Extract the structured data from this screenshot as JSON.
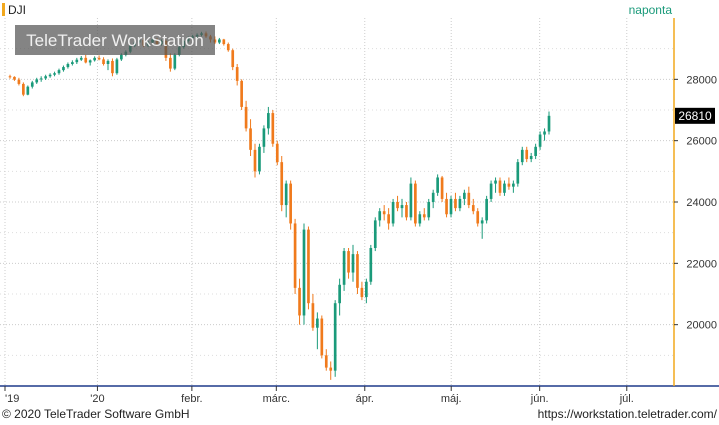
{
  "symbol": "DJI",
  "interval": "naponta",
  "watermark": "TeleTrader WorkStation",
  "footer": {
    "left": "© 2020 TeleTrader Software GmbH",
    "right": "https://workstation.teletrader.com/"
  },
  "colors": {
    "up": "#1a9a7a",
    "down": "#f07a1c",
    "price_tag_bg": "#000000",
    "price_tag_text": "#ffffff",
    "grid": "#cccccc",
    "symbol_marker": "#f2a81d",
    "interval_text": "#1a9a7a"
  },
  "chart_data": {
    "type": "candlestick",
    "ylim": [
      18000,
      30000
    ],
    "y_ticks": [
      20000,
      22000,
      24000,
      26000,
      28000
    ],
    "x_ticks": [
      {
        "label": "'19",
        "pos": 0
      },
      {
        "label": "'20",
        "pos": 0.139
      },
      {
        "label": "febr.",
        "pos": 0.281
      },
      {
        "label": "márc.",
        "pos": 0.408
      },
      {
        "label": "ápr.",
        "pos": 0.541
      },
      {
        "label": "máj.",
        "pos": 0.671
      },
      {
        "label": "jún.",
        "pos": 0.804
      },
      {
        "label": "júl.",
        "pos": 0.935
      }
    ],
    "last_price": "26810",
    "last_value": 26810,
    "candles": [
      [
        28100,
        28150,
        28020,
        28080
      ],
      [
        28080,
        28100,
        27950,
        27990
      ],
      [
        27990,
        28050,
        27800,
        27850
      ],
      [
        27850,
        27900,
        27450,
        27500
      ],
      [
        27500,
        27800,
        27480,
        27760
      ],
      [
        27760,
        27950,
        27700,
        27900
      ],
      [
        27900,
        28050,
        27850,
        28000
      ],
      [
        28000,
        28100,
        27920,
        28030
      ],
      [
        28030,
        28150,
        27980,
        28100
      ],
      [
        28100,
        28200,
        28050,
        28150
      ],
      [
        28150,
        28250,
        28100,
        28200
      ],
      [
        28200,
        28350,
        28150,
        28300
      ],
      [
        28300,
        28450,
        28250,
        28400
      ],
      [
        28400,
        28550,
        28350,
        28500
      ],
      [
        28500,
        28620,
        28450,
        28560
      ],
      [
        28560,
        28700,
        28500,
        28640
      ],
      [
        28640,
        28760,
        28600,
        28700
      ],
      [
        28700,
        28800,
        28520,
        28550
      ],
      [
        28550,
        28650,
        28450,
        28620
      ],
      [
        28620,
        28750,
        28580,
        28700
      ],
      [
        28700,
        28780,
        28620,
        28650
      ],
      [
        28650,
        28720,
        28450,
        28500
      ],
      [
        28500,
        28650,
        28300,
        28600
      ],
      [
        28600,
        28680,
        28100,
        28200
      ],
      [
        28200,
        28700,
        28150,
        28650
      ],
      [
        28650,
        28850,
        28600,
        28800
      ],
      [
        28800,
        28950,
        28750,
        28900
      ],
      [
        28900,
        29150,
        28850,
        29100
      ],
      [
        29100,
        29250,
        29050,
        29200
      ],
      [
        29200,
        29320,
        29150,
        29280
      ],
      [
        29280,
        29350,
        29050,
        29100
      ],
      [
        29100,
        29250,
        29050,
        29200
      ],
      [
        29200,
        29380,
        29150,
        29300
      ],
      [
        29300,
        29350,
        29100,
        29150
      ],
      [
        29150,
        29300,
        29100,
        29250
      ],
      [
        29250,
        29300,
        28600,
        28700
      ],
      [
        28700,
        28850,
        28250,
        28350
      ],
      [
        28350,
        28850,
        28300,
        28800
      ],
      [
        28800,
        29100,
        28750,
        29050
      ],
      [
        29050,
        29300,
        29000,
        29250
      ],
      [
        29250,
        29400,
        29200,
        29350
      ],
      [
        29350,
        29450,
        29300,
        29400
      ],
      [
        29400,
        29500,
        29350,
        29450
      ],
      [
        29450,
        29550,
        29400,
        29500
      ],
      [
        29500,
        29560,
        29350,
        29400
      ],
      [
        29400,
        29450,
        29200,
        29300
      ],
      [
        29300,
        29400,
        29150,
        29200
      ],
      [
        29200,
        29350,
        29150,
        29300
      ],
      [
        29300,
        29320,
        29100,
        29150
      ],
      [
        29150,
        29200,
        28900,
        28950
      ],
      [
        28950,
        29000,
        28300,
        28400
      ],
      [
        28400,
        28500,
        27800,
        27950
      ],
      [
        27950,
        28000,
        27000,
        27100
      ],
      [
        27100,
        27300,
        26300,
        26400
      ],
      [
        26400,
        26700,
        25500,
        25700
      ],
      [
        25700,
        25900,
        24800,
        25000
      ],
      [
        25000,
        25900,
        24900,
        25800
      ],
      [
        25800,
        26500,
        25600,
        26400
      ],
      [
        26400,
        27100,
        26200,
        26900
      ],
      [
        26900,
        27000,
        25800,
        25900
      ],
      [
        25900,
        26000,
        25200,
        25300
      ],
      [
        25300,
        25500,
        23700,
        23900
      ],
      [
        23900,
        24700,
        23500,
        24600
      ],
      [
        24600,
        24700,
        23100,
        23300
      ],
      [
        23300,
        23450,
        21000,
        21200
      ],
      [
        21200,
        21500,
        20000,
        20300
      ],
      [
        20300,
        23300,
        20000,
        23100
      ],
      [
        23100,
        23200,
        20500,
        20700
      ],
      [
        20700,
        21000,
        19800,
        19900
      ],
      [
        19900,
        20400,
        19200,
        20200
      ],
      [
        20200,
        20300,
        18900,
        19000
      ],
      [
        19000,
        19200,
        18500,
        18600
      ],
      [
        18600,
        18800,
        18200,
        18500
      ],
      [
        18500,
        20800,
        18300,
        20700
      ],
      [
        20700,
        21500,
        20300,
        21300
      ],
      [
        21300,
        22500,
        21100,
        22400
      ],
      [
        22400,
        22500,
        21500,
        21700
      ],
      [
        21700,
        22600,
        21400,
        22300
      ],
      [
        22300,
        22400,
        21000,
        21200
      ],
      [
        21200,
        21400,
        20800,
        20900
      ],
      [
        20900,
        21500,
        20700,
        21400
      ],
      [
        21400,
        22600,
        21300,
        22500
      ],
      [
        22500,
        23500,
        22400,
        23400
      ],
      [
        23400,
        23800,
        23200,
        23700
      ],
      [
        23700,
        23900,
        23400,
        23600
      ],
      [
        23600,
        23800,
        23100,
        23300
      ],
      [
        23300,
        24100,
        23200,
        24000
      ],
      [
        24000,
        24200,
        23700,
        23800
      ],
      [
        23800,
        24100,
        23500,
        23900
      ],
      [
        23900,
        24000,
        23400,
        23500
      ],
      [
        23500,
        24800,
        23400,
        24600
      ],
      [
        24600,
        24700,
        23200,
        23300
      ],
      [
        23300,
        23700,
        23200,
        23600
      ],
      [
        23600,
        23800,
        23400,
        23500
      ],
      [
        23500,
        24100,
        23400,
        24000
      ],
      [
        24000,
        24400,
        23800,
        24300
      ],
      [
        24300,
        24900,
        24200,
        24800
      ],
      [
        24800,
        24850,
        24000,
        24100
      ],
      [
        24100,
        24300,
        23500,
        23600
      ],
      [
        23600,
        24200,
        23500,
        24100
      ],
      [
        24100,
        24300,
        23700,
        23800
      ],
      [
        23800,
        24200,
        23700,
        24100
      ],
      [
        24100,
        24400,
        23900,
        24300
      ],
      [
        24300,
        24500,
        23800,
        23900
      ],
      [
        23900,
        24100,
        23600,
        23700
      ],
      [
        23700,
        23800,
        23200,
        23300
      ],
      [
        23300,
        23500,
        22800,
        23400
      ],
      [
        23400,
        24200,
        23300,
        24100
      ],
      [
        24100,
        24700,
        24000,
        24600
      ],
      [
        24600,
        24800,
        24300,
        24700
      ],
      [
        24700,
        24800,
        24200,
        24300
      ],
      [
        24300,
        24700,
        24200,
        24600
      ],
      [
        24600,
        24800,
        24400,
        24500
      ],
      [
        24500,
        24700,
        24300,
        24600
      ],
      [
        24600,
        25400,
        24500,
        25300
      ],
      [
        25300,
        25800,
        25200,
        25700
      ],
      [
        25700,
        25800,
        25300,
        25400
      ],
      [
        25400,
        25600,
        25300,
        25500
      ],
      [
        25500,
        25900,
        25400,
        25800
      ],
      [
        25800,
        26300,
        25700,
        26200
      ],
      [
        26200,
        26400,
        26000,
        26300
      ],
      [
        26300,
        26950,
        26200,
        26810
      ]
    ]
  }
}
